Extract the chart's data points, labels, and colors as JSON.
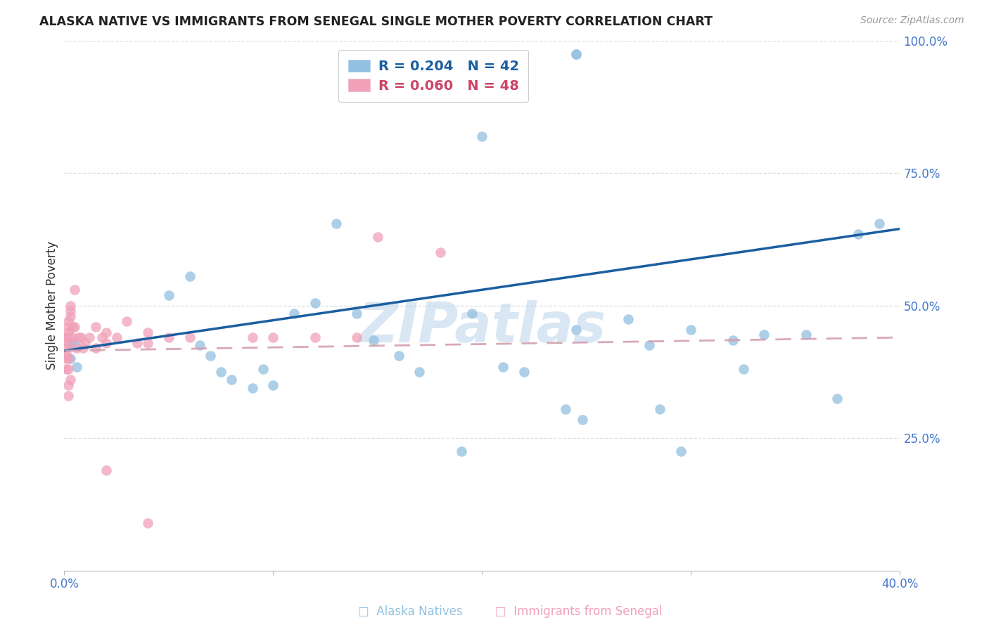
{
  "title": "ALASKA NATIVE VS IMMIGRANTS FROM SENEGAL SINGLE MOTHER POVERTY CORRELATION CHART",
  "source": "Source: ZipAtlas.com",
  "ylabel": "Single Mother Poverty",
  "legend_label_blue": "Alaska Natives",
  "legend_label_pink": "Immigrants from Senegal",
  "xlim": [
    0.0,
    0.4
  ],
  "ylim": [
    0.0,
    1.0
  ],
  "legend_R_blue": "0.204",
  "legend_N_blue": "42",
  "legend_R_pink": "0.060",
  "legend_N_pink": "48",
  "watermark": "ZIPatlas",
  "color_blue": "#92C0E0",
  "color_pink": "#F0A0B8",
  "line_blue": "#1B5EA0",
  "line_pink_dash": "#D4A0B0",
  "background": "#ffffff",
  "grid_color": "#DDDDDD",
  "tick_color": "#4477CC",
  "alaska_x": [
    0.003,
    0.003,
    0.005,
    0.006,
    0.05,
    0.06,
    0.065,
    0.07,
    0.075,
    0.08,
    0.09,
    0.095,
    0.1,
    0.11,
    0.12,
    0.13,
    0.14,
    0.148,
    0.16,
    0.17,
    0.19,
    0.195,
    0.21,
    0.22,
    0.24,
    0.245,
    0.248,
    0.27,
    0.28,
    0.285,
    0.295,
    0.3,
    0.32,
    0.325,
    0.335,
    0.245,
    0.245,
    0.355,
    0.37,
    0.38,
    0.39,
    0.2
  ],
  "alaska_y": [
    0.43,
    0.4,
    0.43,
    0.385,
    0.52,
    0.555,
    0.425,
    0.405,
    0.375,
    0.36,
    0.345,
    0.38,
    0.35,
    0.485,
    0.505,
    0.655,
    0.485,
    0.435,
    0.405,
    0.375,
    0.225,
    0.485,
    0.385,
    0.375,
    0.305,
    0.455,
    0.285,
    0.475,
    0.425,
    0.305,
    0.225,
    0.455,
    0.435,
    0.38,
    0.445,
    0.975,
    0.975,
    0.445,
    0.325,
    0.635,
    0.655,
    0.82
  ],
  "senegal_x": [
    0.001,
    0.001,
    0.001,
    0.001,
    0.001,
    0.002,
    0.002,
    0.002,
    0.002,
    0.002,
    0.002,
    0.002,
    0.002,
    0.002,
    0.003,
    0.003,
    0.003,
    0.003,
    0.004,
    0.004,
    0.005,
    0.005,
    0.006,
    0.007,
    0.008,
    0.009,
    0.01,
    0.012,
    0.015,
    0.015,
    0.018,
    0.02,
    0.02,
    0.025,
    0.03,
    0.035,
    0.04,
    0.04,
    0.05,
    0.06,
    0.09,
    0.1,
    0.12,
    0.14,
    0.15,
    0.18,
    0.02,
    0.04
  ],
  "senegal_y": [
    0.44,
    0.42,
    0.41,
    0.4,
    0.38,
    0.47,
    0.46,
    0.45,
    0.44,
    0.43,
    0.4,
    0.38,
    0.35,
    0.33,
    0.5,
    0.49,
    0.48,
    0.36,
    0.46,
    0.44,
    0.53,
    0.46,
    0.42,
    0.44,
    0.44,
    0.42,
    0.43,
    0.44,
    0.42,
    0.46,
    0.44,
    0.45,
    0.43,
    0.44,
    0.47,
    0.43,
    0.45,
    0.43,
    0.44,
    0.44,
    0.44,
    0.44,
    0.44,
    0.44,
    0.63,
    0.6,
    0.19,
    0.09
  ],
  "blue_line_x": [
    0.0,
    0.4
  ],
  "blue_line_y": [
    0.415,
    0.645
  ],
  "pink_line_x": [
    0.0,
    0.4
  ],
  "pink_line_y": [
    0.415,
    0.44
  ]
}
